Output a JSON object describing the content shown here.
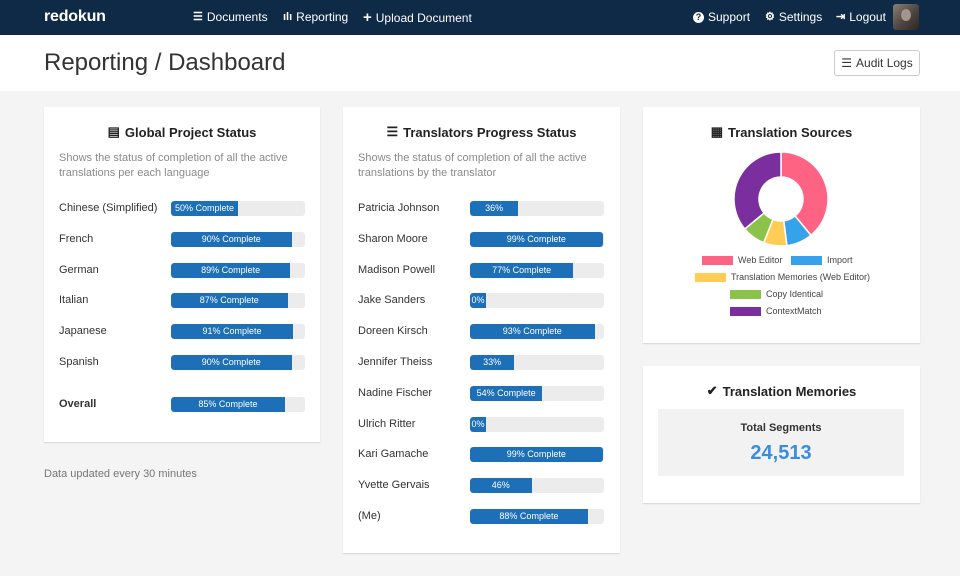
{
  "topbar": {
    "logo": "redokun",
    "nav": [
      {
        "icon": "☰",
        "label": "Documents"
      },
      {
        "icon": "ılı",
        "label": "Reporting"
      },
      {
        "icon": "+",
        "label": "Upload Document"
      }
    ],
    "support": {
      "icon": "?",
      "label": "Support"
    },
    "settings": {
      "icon": "⚙",
      "label": "Settings"
    },
    "logout": {
      "icon": "⇥",
      "label": "Logout"
    }
  },
  "header": {
    "title": "Reporting / Dashboard",
    "audit_button": {
      "icon": "☰",
      "label": "Audit Logs"
    }
  },
  "global_status": {
    "icon": "▤",
    "title": "Global Project Status",
    "description": "Shows the status of completion of all the active translations per each language",
    "rows": [
      {
        "label": "Chinese (Simplified)",
        "percent": 50,
        "bar_text": "50% Complete"
      },
      {
        "label": "French",
        "percent": 90,
        "bar_text": "90% Complete"
      },
      {
        "label": "German",
        "percent": 89,
        "bar_text": "89% Complete"
      },
      {
        "label": "Italian",
        "percent": 87,
        "bar_text": "87% Complete"
      },
      {
        "label": "Japanese",
        "percent": 91,
        "bar_text": "91% Complete"
      },
      {
        "label": "Spanish",
        "percent": 90,
        "bar_text": "90% Complete"
      }
    ],
    "overall": {
      "label": "Overall",
      "percent": 85,
      "bar_text": "85% Complete"
    },
    "footer_note": "Data updated every 30 minutes"
  },
  "translators": {
    "icon": "☰",
    "title": "Translators Progress Status",
    "description": "Shows the status of completion of all the active translations by the translator",
    "rows": [
      {
        "label": "Patricia Johnson",
        "percent": 36,
        "bar_text": "36%"
      },
      {
        "label": "Sharon Moore",
        "percent": 99,
        "bar_text": "99% Complete"
      },
      {
        "label": "Madison Powell",
        "percent": 77,
        "bar_text": "77% Complete"
      },
      {
        "label": "Jake Sanders",
        "percent": 0,
        "bar_text": "0%"
      },
      {
        "label": "Doreen Kirsch",
        "percent": 93,
        "bar_text": "93% Complete"
      },
      {
        "label": "Jennifer Theiss",
        "percent": 33,
        "bar_text": "33%"
      },
      {
        "label": "Nadine Fischer",
        "percent": 54,
        "bar_text": "54% Complete"
      },
      {
        "label": "Ulrich Ritter",
        "percent": 0,
        "bar_text": "0%"
      },
      {
        "label": "Kari Gamache",
        "percent": 99,
        "bar_text": "99% Complete"
      },
      {
        "label": "Yvette Gervais",
        "percent": 46,
        "bar_text": "46%"
      },
      {
        "label": "(Me)",
        "percent": 88,
        "bar_text": "88% Complete"
      }
    ]
  },
  "sources": {
    "icon": "▦",
    "title": "Translation Sources",
    "chart_data": {
      "type": "pie",
      "categories": [
        "Web Editor",
        "Import",
        "Translation Memories (Web Editor)",
        "Copy Identical",
        "ContextMatch"
      ],
      "values": [
        39,
        9,
        8,
        8,
        36
      ],
      "colors": [
        "#ff6384",
        "#36a2eb",
        "#ffcd56",
        "#8bc34a",
        "#7b2f9e"
      ]
    }
  },
  "memories": {
    "icon": "✔",
    "title": "Translation Memories",
    "segments_label": "Total Segments",
    "segments_value": "24,513"
  },
  "theme": {
    "accent": "#1d6fb8",
    "topbar": "#0e2a47",
    "highlight": "#3a8dde"
  }
}
